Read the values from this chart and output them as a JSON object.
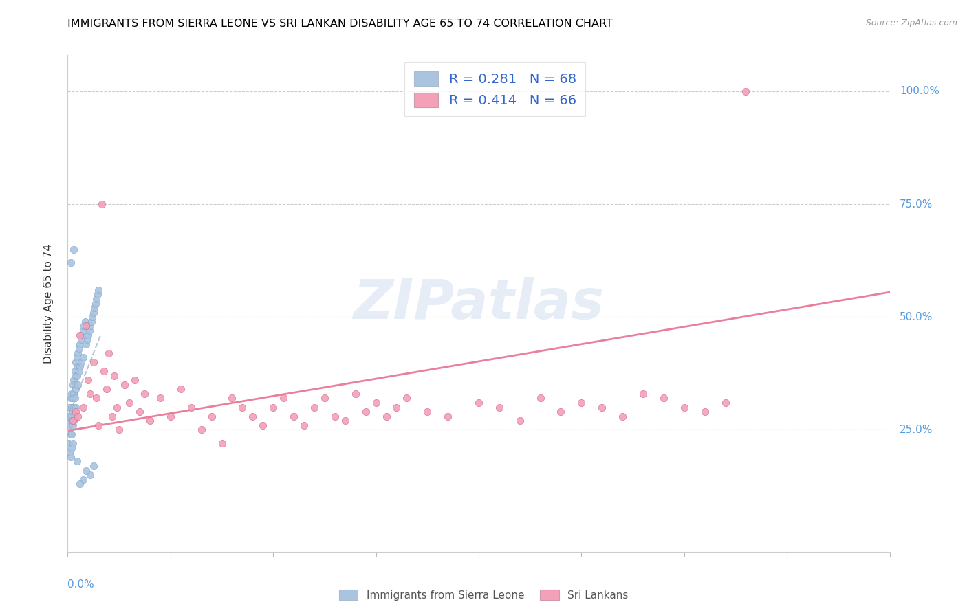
{
  "title": "IMMIGRANTS FROM SIERRA LEONE VS SRI LANKAN DISABILITY AGE 65 TO 74 CORRELATION CHART",
  "source": "Source: ZipAtlas.com",
  "ylabel": "Disability Age 65 to 74",
  "ytick_labels": [
    "25.0%",
    "50.0%",
    "75.0%",
    "100.0%"
  ],
  "ytick_values": [
    0.25,
    0.5,
    0.75,
    1.0
  ],
  "xlim": [
    0.0,
    0.8
  ],
  "ylim": [
    -0.02,
    1.08
  ],
  "legend_label1": "Immigrants from Sierra Leone",
  "legend_label2": "Sri Lankans",
  "color_blue": "#aac4e0",
  "color_pink": "#f4a0b8",
  "trendline_blue_color": "#aabbd0",
  "trendline_pink_color": "#e87090",
  "watermark": "ZIPatlas",
  "sierra_leone_x": [
    0.001,
    0.001,
    0.002,
    0.002,
    0.002,
    0.003,
    0.003,
    0.003,
    0.003,
    0.004,
    0.004,
    0.004,
    0.004,
    0.004,
    0.005,
    0.005,
    0.005,
    0.005,
    0.005,
    0.006,
    0.006,
    0.006,
    0.006,
    0.007,
    0.007,
    0.007,
    0.007,
    0.008,
    0.008,
    0.008,
    0.008,
    0.009,
    0.009,
    0.01,
    0.01,
    0.01,
    0.011,
    0.011,
    0.012,
    0.012,
    0.013,
    0.013,
    0.014,
    0.015,
    0.015,
    0.016,
    0.017,
    0.018,
    0.019,
    0.02,
    0.021,
    0.022,
    0.023,
    0.024,
    0.025,
    0.026,
    0.027,
    0.028,
    0.029,
    0.03,
    0.025,
    0.022,
    0.018,
    0.015,
    0.012,
    0.009,
    0.006,
    0.003
  ],
  "sierra_leone_y": [
    0.28,
    0.22,
    0.3,
    0.26,
    0.2,
    0.32,
    0.28,
    0.24,
    0.19,
    0.33,
    0.3,
    0.27,
    0.24,
    0.21,
    0.35,
    0.32,
    0.29,
    0.26,
    0.22,
    0.36,
    0.33,
    0.3,
    0.27,
    0.38,
    0.35,
    0.32,
    0.28,
    0.4,
    0.37,
    0.34,
    0.3,
    0.41,
    0.37,
    0.42,
    0.39,
    0.35,
    0.43,
    0.38,
    0.44,
    0.39,
    0.45,
    0.4,
    0.46,
    0.47,
    0.41,
    0.48,
    0.49,
    0.44,
    0.45,
    0.46,
    0.47,
    0.48,
    0.49,
    0.5,
    0.51,
    0.52,
    0.53,
    0.54,
    0.55,
    0.56,
    0.17,
    0.15,
    0.16,
    0.14,
    0.13,
    0.18,
    0.65,
    0.62
  ],
  "sri_lanka_x": [
    0.005,
    0.008,
    0.01,
    0.012,
    0.015,
    0.018,
    0.02,
    0.022,
    0.025,
    0.028,
    0.03,
    0.033,
    0.035,
    0.038,
    0.04,
    0.043,
    0.045,
    0.048,
    0.05,
    0.055,
    0.06,
    0.065,
    0.07,
    0.075,
    0.08,
    0.09,
    0.1,
    0.11,
    0.12,
    0.13,
    0.14,
    0.15,
    0.16,
    0.17,
    0.18,
    0.19,
    0.2,
    0.21,
    0.22,
    0.23,
    0.24,
    0.25,
    0.26,
    0.27,
    0.28,
    0.29,
    0.3,
    0.31,
    0.32,
    0.33,
    0.35,
    0.37,
    0.4,
    0.42,
    0.44,
    0.46,
    0.48,
    0.5,
    0.52,
    0.54,
    0.56,
    0.58,
    0.6,
    0.62,
    0.64,
    0.66
  ],
  "sri_lanka_y": [
    0.27,
    0.29,
    0.28,
    0.46,
    0.3,
    0.48,
    0.36,
    0.33,
    0.4,
    0.32,
    0.26,
    0.75,
    0.38,
    0.34,
    0.42,
    0.28,
    0.37,
    0.3,
    0.25,
    0.35,
    0.31,
    0.36,
    0.29,
    0.33,
    0.27,
    0.32,
    0.28,
    0.34,
    0.3,
    0.25,
    0.28,
    0.22,
    0.32,
    0.3,
    0.28,
    0.26,
    0.3,
    0.32,
    0.28,
    0.26,
    0.3,
    0.32,
    0.28,
    0.27,
    0.33,
    0.29,
    0.31,
    0.28,
    0.3,
    0.32,
    0.29,
    0.28,
    0.31,
    0.3,
    0.27,
    0.32,
    0.29,
    0.31,
    0.3,
    0.28,
    0.33,
    0.32,
    0.3,
    0.29,
    0.31,
    1.0
  ],
  "blue_trend_x": [
    0.0,
    0.032
  ],
  "blue_trend_y": [
    0.275,
    0.46
  ],
  "pink_trend_x": [
    0.0,
    0.8
  ],
  "pink_trend_y": [
    0.248,
    0.555
  ]
}
